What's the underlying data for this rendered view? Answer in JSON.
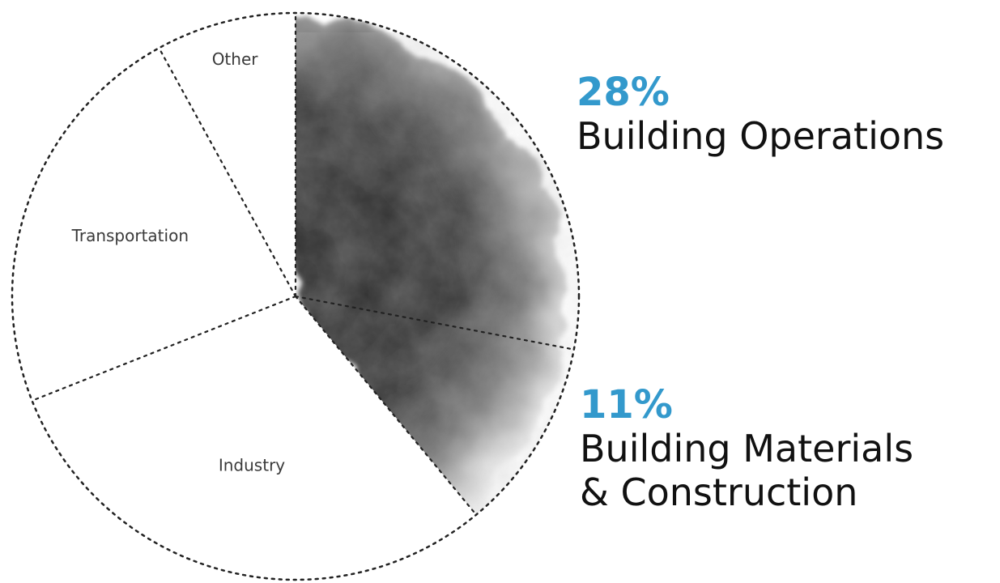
{
  "chart_data": {
    "type": "pie",
    "title": "",
    "slices": [
      {
        "label": "Building Operations",
        "value": 28,
        "display": "28%",
        "highlight": true,
        "fill": "smoke"
      },
      {
        "label": "Building Materials & Construction",
        "value": 11,
        "display": "11%",
        "highlight": true,
        "fill": "smoke"
      },
      {
        "label": "Industry",
        "value": 30,
        "display": "",
        "highlight": false,
        "fill": "white"
      },
      {
        "label": "Transportation",
        "value": 23,
        "display": "",
        "highlight": false,
        "fill": "white"
      },
      {
        "label": "Other",
        "value": 8,
        "display": "",
        "highlight": false,
        "fill": "white"
      }
    ],
    "callouts": [
      {
        "percent": "28%",
        "label_lines": [
          "Building Operations"
        ]
      },
      {
        "percent": "11%",
        "label_lines": [
          "Building Materials",
          "& Construction"
        ]
      }
    ],
    "colors": {
      "accent": "#3399cc",
      "outline": "#222222",
      "smoke_dark": "#2e2e2e",
      "smoke_light": "#e6e6e6"
    },
    "outline_style": "dotted"
  }
}
